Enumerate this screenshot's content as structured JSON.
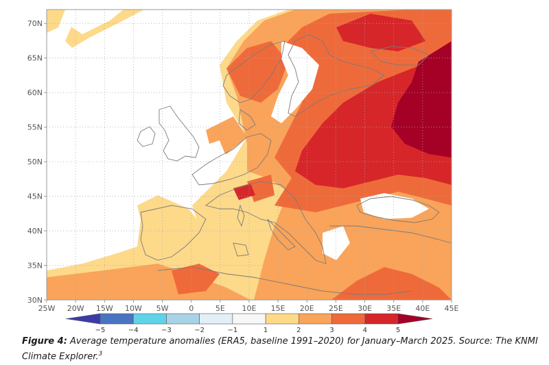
{
  "map": {
    "lon_ticks": [
      "25W",
      "20W",
      "15W",
      "10W",
      "5W",
      "0",
      "5E",
      "10E",
      "15E",
      "20E",
      "25E",
      "30E",
      "35E",
      "40E",
      "45E"
    ],
    "lat_ticks": [
      "70N",
      "65N",
      "60N",
      "55N",
      "50N",
      "45N",
      "40N",
      "35N",
      "30N"
    ],
    "lon_range": [
      -25,
      45
    ],
    "lat_range": [
      30,
      72
    ],
    "colors": {
      "land_outline": "#7a7a7a",
      "ocean": "#ffffff",
      "background_field": "#ffffff"
    }
  },
  "colorbar": {
    "labels": [
      "-5",
      "-4",
      "-3",
      "-2",
      "-1",
      "1",
      "2",
      "3",
      "4",
      "5"
    ],
    "bins": [
      {
        "color": "#3b3ba8"
      },
      {
        "color": "#4a74c0"
      },
      {
        "color": "#5fd3e8"
      },
      {
        "color": "#a8d3e6"
      },
      {
        "color": "#e2eff6"
      },
      {
        "color": "#f7f7f7"
      },
      {
        "color": "#fdd98a"
      },
      {
        "color": "#f9a45a"
      },
      {
        "color": "#ef6a3a"
      },
      {
        "color": "#d6262a"
      },
      {
        "color": "#a50026"
      }
    ]
  },
  "caption": {
    "label": "Figure 4:",
    "text": " Average temperature anomalies (ERA5, baseline 1991–2020) for January–March 2025. Source: The KNMI Climate Explorer.",
    "footnote": "3"
  }
}
